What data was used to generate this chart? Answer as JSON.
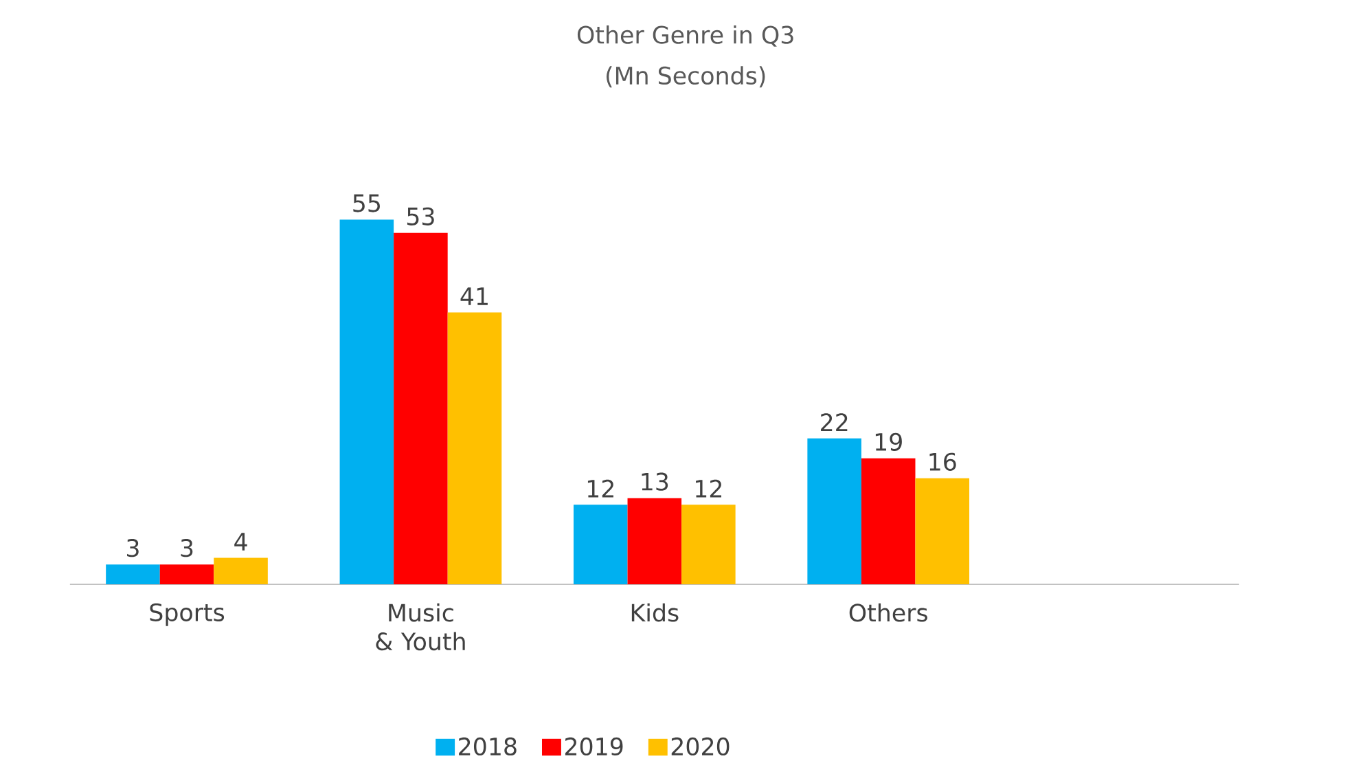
{
  "chart_data": {
    "type": "bar",
    "title": "Other Genre in Q3",
    "subtitle": "(Mn Seconds)",
    "legend": "bottom",
    "data_labels": true,
    "tick_labels": "x",
    "categories": [
      "Sports",
      "Music & Youth",
      "Kids",
      "Others",
      null
    ],
    "series": [
      {
        "name": "2018",
        "color": "#00b0f0",
        "values": [
          3,
          55,
          12,
          22,
          null
        ]
      },
      {
        "name": "2019",
        "color": "#ff0000",
        "values": [
          3,
          53,
          13,
          19,
          null
        ]
      },
      {
        "name": "2020",
        "color": "#ffc000",
        "values": [
          4,
          41,
          12,
          16,
          null
        ]
      }
    ]
  }
}
